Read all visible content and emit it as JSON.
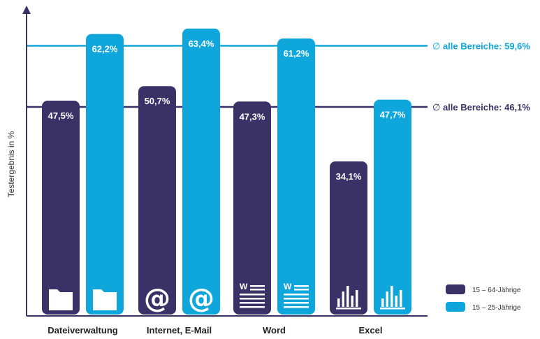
{
  "chart_data": {
    "type": "bar",
    "categories": [
      "Dateiverwaltung",
      "Internet, E-Mail",
      "Word",
      "Excel"
    ],
    "category_icons": [
      "folder-icon",
      "at-sign-icon",
      "word-document-icon",
      "bar-chart-icon"
    ],
    "series": [
      {
        "name": "15 – 64-Jährige",
        "values": [
          47.5,
          50.7,
          47.3,
          34.1
        ],
        "labels": [
          "47,5%",
          "50,7%",
          "47,3%",
          "34,1%"
        ],
        "color": "#3a3167"
      },
      {
        "name": "15 – 25-Jährige",
        "values": [
          62.2,
          63.4,
          61.2,
          47.7
        ],
        "labels": [
          "62,2%",
          "63,4%",
          "61,2%",
          "47,7%"
        ],
        "color": "#0fa6dc"
      }
    ],
    "reference_lines": [
      {
        "value": 59.6,
        "label": "alle Bereiche: 59,6%",
        "symbol": "∅",
        "color": "#0fa6dc"
      },
      {
        "value": 46.1,
        "label": "alle Bereiche: 46,1%",
        "symbol": "∅",
        "color": "#3a3167"
      }
    ],
    "ylabel": "Testergebnis in %",
    "ylim": [
      0,
      66
    ],
    "legend_position": "bottom-right",
    "grid": false
  }
}
